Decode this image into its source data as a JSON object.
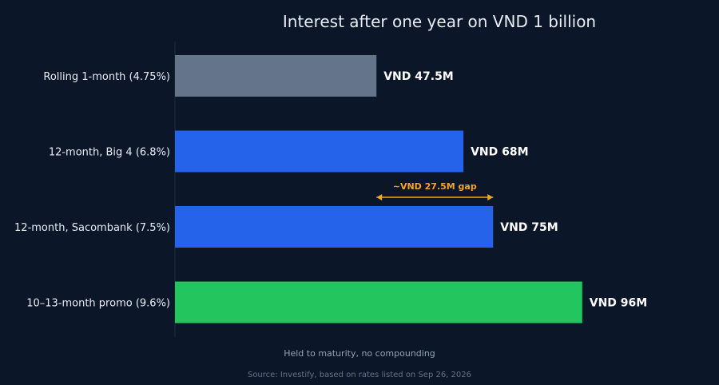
{
  "chart_data": {
    "type": "bar",
    "orientation": "horizontal",
    "title": "Interest after one year on VND 1 billion",
    "subtitle": "Held to maturity, no compounding",
    "source": "Source: Investify, based on rates listed on Sep 26, 2026",
    "xlabel": "",
    "ylabel": "",
    "xlim": [
      0,
      100
    ],
    "grid": false,
    "categories": [
      "Rolling 1-month (4.75%)",
      "12-month, Big 4 (6.8%)",
      "12-month, Sacombank (7.5%)",
      "10–13-month promo (9.6%)"
    ],
    "values": [
      47.5,
      68,
      75,
      96
    ],
    "value_labels": [
      "VND 47.5M",
      "VND 68M",
      "VND 75M",
      "VND 96M"
    ],
    "bar_colors": [
      "#64748b",
      "#2563eb",
      "#2563eb",
      "#22c55e"
    ],
    "annotation": {
      "text": "~VND 27.5M gap",
      "from": 47.5,
      "to": 75,
      "color": "#f5a524"
    },
    "colors": {
      "background": "#0b1628",
      "text": "#e8edf5",
      "muted": "#94a3b8",
      "source": "#64748b",
      "axis": "#1e2d45"
    }
  }
}
